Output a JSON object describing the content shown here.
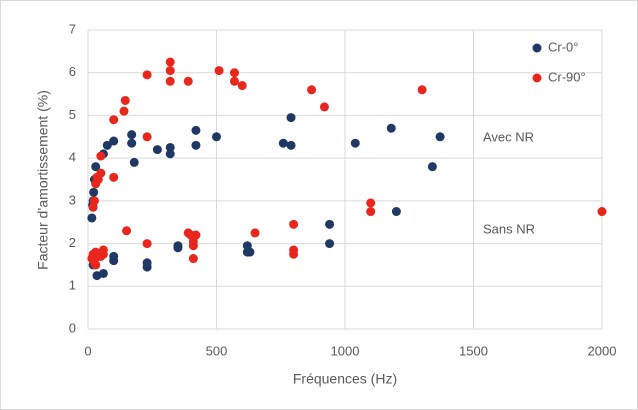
{
  "chart_data": {
    "type": "scatter",
    "x_label": "Fréquences (Hz)",
    "y_label": "Facteur d’amortissement (%)",
    "annotations": [
      "Avec NR",
      "Sans NR"
    ],
    "xlim": [
      0,
      2000
    ],
    "xticks": [
      0,
      500,
      1000,
      1500,
      2000
    ],
    "ylim": [
      0,
      7
    ],
    "yticks": [
      0,
      1,
      2,
      3,
      4,
      5,
      6,
      7
    ],
    "grid": true,
    "legend": "upper right",
    "series": [
      {
        "name": "Cr-0°",
        "color": "#1f3864",
        "x": [
          15,
          18,
          20,
          22,
          25,
          30,
          60,
          75,
          100,
          170,
          170,
          180,
          270,
          320,
          320,
          420,
          420,
          500,
          760,
          790,
          790,
          1040,
          1180,
          1340,
          1370,
          1200,
          940,
          940,
          620,
          630,
          620,
          350,
          350,
          230,
          230,
          100,
          100,
          60,
          35,
          20,
          20
        ],
        "values": [
          2.6,
          2.9,
          3.0,
          3.2,
          3.5,
          3.8,
          4.1,
          4.3,
          4.4,
          4.55,
          4.35,
          3.9,
          4.2,
          4.25,
          4.1,
          4.65,
          4.3,
          4.5,
          4.35,
          4.95,
          4.3,
          4.35,
          4.7,
          3.8,
          4.5,
          2.75,
          2.45,
          2.0,
          1.95,
          1.8,
          1.8,
          1.95,
          1.9,
          1.55,
          1.45,
          1.7,
          1.6,
          1.3,
          1.25,
          1.7,
          1.5
        ]
      },
      {
        "name": "Cr-90°",
        "color": "#e8261c",
        "x": [
          20,
          25,
          30,
          35,
          40,
          50,
          50,
          100,
          100,
          140,
          145,
          230,
          230,
          320,
          320,
          320,
          390,
          510,
          570,
          570,
          600,
          870,
          920,
          1300,
          1100,
          1100,
          2000,
          800,
          800,
          800,
          650,
          410,
          410,
          410,
          400,
          390,
          420,
          150,
          230,
          60,
          60,
          50,
          40,
          30,
          20,
          15,
          25,
          30
        ],
        "values": [
          2.85,
          3.0,
          3.4,
          3.55,
          3.5,
          3.65,
          4.05,
          3.55,
          4.9,
          5.1,
          5.35,
          5.95,
          4.5,
          6.25,
          6.05,
          5.8,
          5.8,
          6.05,
          6.0,
          5.8,
          5.7,
          5.6,
          5.2,
          5.6,
          2.95,
          2.75,
          2.75,
          2.45,
          1.85,
          1.75,
          2.25,
          1.65,
          1.95,
          2.05,
          2.2,
          2.25,
          2.2,
          2.3,
          2.0,
          1.85,
          1.75,
          1.7,
          1.7,
          1.8,
          1.75,
          1.65,
          1.55,
          1.5
        ]
      }
    ]
  }
}
